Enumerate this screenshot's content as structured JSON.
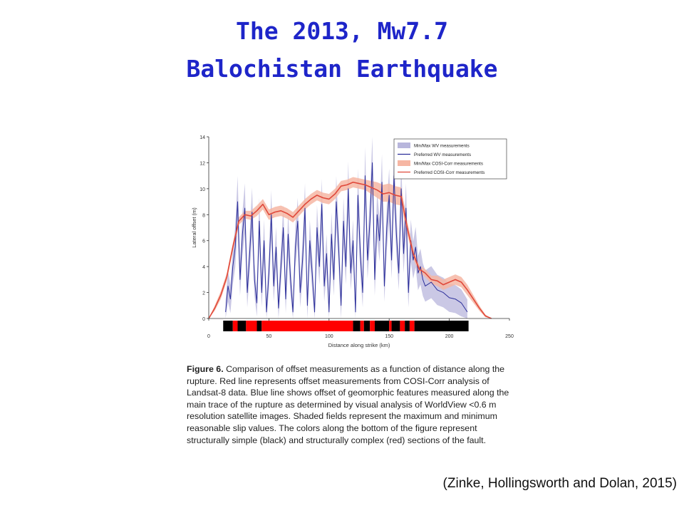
{
  "slide": {
    "title_line1": "The 2013,  Mw7.7",
    "title_line2": "Balochistan Earthquake",
    "caption_label": "Figure 6.",
    "caption_text": " Comparison of offset measurements as a function of distance along the rupture. Red line represents offset measurements from COSI-Corr analysis of Landsat-8 data. Blue line shows offset of geomorphic features measured along the main trace of the rupture as determined by visual analysis of WorldView <0.6 m resolution satellite images. Shaded fields represent the maximum and minimum reasonable slip values. The colors along the bottom of the figure represent structurally simple (black) and structurally complex (red) sections of the fault.",
    "citation": "(Zinke, Hollingsworth and Dolan, 2015)"
  },
  "colors": {
    "title": "#1e25c9",
    "cosi_line": "#e0483a",
    "cosi_band": "#f6b6a3",
    "wv_line": "#2c2f9a",
    "wv_band": "#b8b6dc",
    "simple_section": "#000000",
    "complex_section": "#ff0000"
  },
  "chart_data": {
    "type": "line",
    "xlabel": "Distance along strike (km)",
    "ylabel": "Lateral offset (m)",
    "xlim": [
      0,
      250
    ],
    "ylim": [
      0,
      14
    ],
    "x_ticks": [
      0,
      50,
      100,
      150,
      200,
      250
    ],
    "y_ticks": [
      0,
      2,
      4,
      6,
      8,
      10,
      12,
      14
    ],
    "grid": false,
    "legend_position": "top-right",
    "legend": [
      {
        "label": "Min/Max WV measurements",
        "kind": "band",
        "color": "#b8b6dc"
      },
      {
        "label": "Preferred WV measurements",
        "kind": "line",
        "color": "#2c2f9a"
      },
      {
        "label": "Min/Max COSI-Corr measurements",
        "kind": "band",
        "color": "#f6b6a3"
      },
      {
        "label": "Preferred COSI-Corr measurements",
        "kind": "line",
        "color": "#e0483a"
      }
    ],
    "series": [
      {
        "name": "Preferred COSI-Corr measurements",
        "x": [
          0,
          5,
          10,
          15,
          20,
          25,
          30,
          35,
          40,
          45,
          50,
          55,
          60,
          65,
          70,
          75,
          80,
          85,
          90,
          95,
          100,
          105,
          110,
          115,
          120,
          125,
          130,
          135,
          140,
          145,
          150,
          155,
          160,
          165,
          170,
          175,
          180,
          185,
          190,
          195,
          200,
          205,
          210,
          215,
          220,
          225,
          230,
          235
        ],
        "y": [
          0,
          0.8,
          1.8,
          3.2,
          5.5,
          7.5,
          8.0,
          7.9,
          8.3,
          8.8,
          8.0,
          8.2,
          8.3,
          8.1,
          7.8,
          8.3,
          8.8,
          9.2,
          9.5,
          9.3,
          9.2,
          9.6,
          10.2,
          10.3,
          10.5,
          10.4,
          10.3,
          10.1,
          9.9,
          9.6,
          9.7,
          9.5,
          9.4,
          7.0,
          5.0,
          3.8,
          3.5,
          3.0,
          2.9,
          2.6,
          2.8,
          3.0,
          2.8,
          2.2,
          1.5,
          0.8,
          0.2,
          0.0
        ],
        "min": [
          0,
          0.6,
          1.5,
          2.9,
          5.2,
          7.2,
          7.7,
          7.6,
          7.9,
          8.4,
          7.6,
          7.8,
          7.9,
          7.7,
          7.4,
          7.9,
          8.4,
          8.8,
          9.1,
          8.9,
          8.8,
          9.2,
          9.8,
          9.9,
          10.1,
          10.0,
          9.9,
          9.6,
          9.3,
          9.0,
          9.0,
          8.8,
          8.7,
          6.5,
          4.6,
          3.5,
          3.2,
          2.7,
          2.5,
          2.2,
          2.4,
          2.6,
          2.4,
          1.8,
          1.2,
          0.6,
          0.1,
          0.0
        ],
        "max": [
          0,
          1.0,
          2.1,
          3.5,
          5.8,
          7.8,
          8.3,
          8.3,
          8.7,
          9.2,
          8.4,
          8.6,
          8.7,
          8.5,
          8.2,
          8.7,
          9.2,
          9.6,
          9.9,
          9.7,
          9.6,
          10.0,
          10.6,
          10.7,
          10.9,
          10.8,
          10.7,
          10.6,
          10.5,
          10.3,
          10.4,
          10.2,
          10.1,
          7.5,
          5.4,
          4.1,
          3.8,
          3.3,
          3.3,
          3.0,
          3.2,
          3.4,
          3.2,
          2.6,
          1.8,
          1.0,
          0.3,
          0.0
        ]
      },
      {
        "name": "Preferred WV measurements",
        "x": [
          14,
          16,
          18,
          20,
          22,
          24,
          26,
          28,
          30,
          32,
          34,
          36,
          38,
          40,
          42,
          44,
          46,
          48,
          50,
          52,
          54,
          56,
          58,
          60,
          62,
          64,
          66,
          68,
          70,
          72,
          74,
          76,
          78,
          80,
          82,
          84,
          86,
          88,
          90,
          92,
          94,
          96,
          98,
          100,
          102,
          104,
          106,
          108,
          110,
          112,
          114,
          116,
          118,
          120,
          122,
          124,
          126,
          128,
          130,
          132,
          134,
          136,
          138,
          140,
          142,
          144,
          146,
          148,
          150,
          152,
          154,
          156,
          158,
          160,
          162,
          164,
          166,
          168,
          170,
          172,
          174,
          176,
          178,
          180,
          185,
          190,
          195,
          200,
          205,
          210,
          215
        ],
        "y": [
          0.5,
          2.5,
          1.5,
          4.0,
          5.5,
          9.0,
          3.0,
          6.5,
          8.5,
          2.0,
          5.0,
          8.2,
          3.0,
          1.2,
          7.5,
          2.0,
          6.0,
          0.5,
          3.5,
          8.0,
          2.5,
          5.5,
          0.8,
          4.0,
          7.0,
          1.5,
          6.5,
          3.0,
          0.5,
          5.5,
          7.5,
          2.0,
          4.5,
          8.5,
          1.0,
          6.0,
          3.5,
          0.5,
          7.0,
          4.0,
          8.8,
          2.5,
          5.0,
          0.5,
          6.5,
          3.0,
          9.0,
          5.5,
          1.0,
          7.5,
          4.0,
          10.0,
          3.5,
          6.0,
          0.5,
          9.5,
          5.0,
          2.0,
          11.0,
          4.5,
          7.5,
          12.0,
          3.0,
          8.0,
          6.0,
          10.5,
          2.5,
          7.0,
          9.5,
          4.5,
          11.0,
          6.5,
          3.5,
          10.0,
          5.0,
          8.5,
          2.0,
          6.0,
          4.5,
          5.5,
          3.5,
          4.0,
          3.0,
          2.5,
          2.8,
          2.2,
          2.0,
          1.6,
          1.5,
          1.2,
          0.5
        ]
      }
    ],
    "bottom_sections": [
      {
        "start": 12,
        "end": 20,
        "type": "simple"
      },
      {
        "start": 20,
        "end": 24,
        "type": "complex"
      },
      {
        "start": 24,
        "end": 31,
        "type": "simple"
      },
      {
        "start": 31,
        "end": 40,
        "type": "complex"
      },
      {
        "start": 40,
        "end": 44,
        "type": "simple"
      },
      {
        "start": 44,
        "end": 120,
        "type": "complex"
      },
      {
        "start": 120,
        "end": 126,
        "type": "simple"
      },
      {
        "start": 126,
        "end": 129,
        "type": "complex"
      },
      {
        "start": 129,
        "end": 134,
        "type": "simple"
      },
      {
        "start": 134,
        "end": 138,
        "type": "complex"
      },
      {
        "start": 138,
        "end": 150,
        "type": "simple"
      },
      {
        "start": 150,
        "end": 152,
        "type": "complex"
      },
      {
        "start": 152,
        "end": 159,
        "type": "simple"
      },
      {
        "start": 159,
        "end": 163,
        "type": "complex"
      },
      {
        "start": 163,
        "end": 167,
        "type": "simple"
      },
      {
        "start": 167,
        "end": 171,
        "type": "complex"
      },
      {
        "start": 171,
        "end": 216,
        "type": "simple"
      }
    ]
  }
}
